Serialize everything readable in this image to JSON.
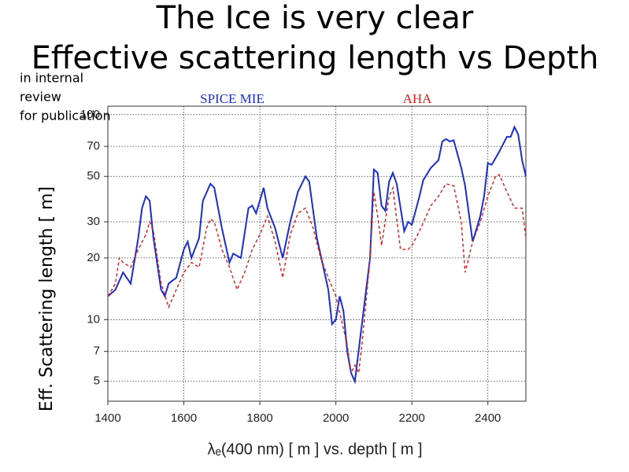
{
  "chart_data": {
    "type": "line",
    "title": "The Ice is very clear",
    "subtitle": "Effective scattering length vs Depth",
    "annotation": [
      "in internal",
      "review",
      "for publication"
    ],
    "xlabel": "λₑ(400 nm) [ m ] vs. depth [ m ]",
    "ylabel": "Eff. Scattering length [ m]",
    "log_y": true,
    "grid": true,
    "xlim": [
      1400,
      2500
    ],
    "xticks": [
      1400,
      1600,
      1800,
      2000,
      2200,
      2400
    ],
    "ylim": [
      4,
      110
    ],
    "yticks": [
      5,
      7,
      10,
      20,
      30,
      50,
      70,
      100
    ],
    "series": [
      {
        "name": "SPICE MIE",
        "color": "#1a2fc8",
        "dash": false,
        "x": [
          1400,
          1420,
          1440,
          1460,
          1480,
          1490,
          1500,
          1510,
          1520,
          1540,
          1550,
          1560,
          1580,
          1600,
          1610,
          1620,
          1640,
          1650,
          1670,
          1680,
          1700,
          1720,
          1730,
          1750,
          1770,
          1780,
          1790,
          1810,
          1820,
          1840,
          1860,
          1880,
          1900,
          1920,
          1930,
          1950,
          1970,
          1980,
          1990,
          2000,
          2010,
          2020,
          2030,
          2040,
          2050,
          2070,
          2090,
          2100,
          2110,
          2120,
          2130,
          2140,
          2150,
          2160,
          2180,
          2190,
          2200,
          2220,
          2230,
          2250,
          2270,
          2280,
          2290,
          2300,
          2310,
          2330,
          2340,
          2360,
          2380,
          2390,
          2400,
          2410,
          2430,
          2450,
          2460,
          2470,
          2480,
          2490,
          2500
        ],
        "values": [
          13,
          14,
          17,
          15,
          25,
          35,
          40,
          38,
          25,
          14,
          13,
          15,
          16,
          22,
          24,
          20,
          25,
          38,
          46,
          44,
          28,
          19,
          21,
          20,
          35,
          36,
          33,
          44,
          35,
          28,
          20,
          30,
          42,
          50,
          47,
          25,
          17,
          14,
          9.5,
          10,
          13,
          11,
          7,
          5.5,
          5,
          10,
          20,
          54,
          52,
          36,
          34,
          47,
          52,
          46,
          27,
          30,
          29,
          40,
          48,
          55,
          60,
          74,
          76,
          74,
          75,
          55,
          45,
          24,
          32,
          40,
          58,
          57,
          66,
          78,
          78,
          87,
          80,
          60,
          50
        ]
      },
      {
        "name": "AHA",
        "color": "#d42020",
        "dash": true,
        "x": [
          1400,
          1420,
          1430,
          1440,
          1460,
          1480,
          1500,
          1510,
          1520,
          1540,
          1560,
          1580,
          1600,
          1620,
          1640,
          1660,
          1670,
          1680,
          1700,
          1720,
          1740,
          1760,
          1780,
          1800,
          1820,
          1840,
          1860,
          1880,
          1900,
          1920,
          1940,
          1960,
          1980,
          2000,
          2020,
          2030,
          2040,
          2050,
          2060,
          2070,
          2090,
          2100,
          2110,
          2120,
          2140,
          2150,
          2170,
          2190,
          2200,
          2220,
          2250,
          2270,
          2290,
          2310,
          2330,
          2340,
          2360,
          2380,
          2400,
          2420,
          2430,
          2450,
          2470,
          2490,
          2500
        ],
        "values": [
          13,
          15,
          20,
          19,
          18,
          22,
          26,
          30,
          27,
          15,
          11.5,
          14,
          17,
          19,
          18,
          28,
          31,
          30,
          22,
          18,
          14,
          17,
          22,
          26,
          32,
          24,
          16,
          26,
          33,
          35,
          28,
          20,
          16,
          13,
          9,
          7.5,
          5.5,
          6,
          5.5,
          8,
          20,
          42,
          32,
          23,
          40,
          44,
          22,
          22,
          23,
          27,
          36,
          40,
          46,
          45,
          30,
          17,
          24,
          30,
          40,
          50,
          51,
          42,
          35,
          35,
          25
        ]
      }
    ]
  }
}
